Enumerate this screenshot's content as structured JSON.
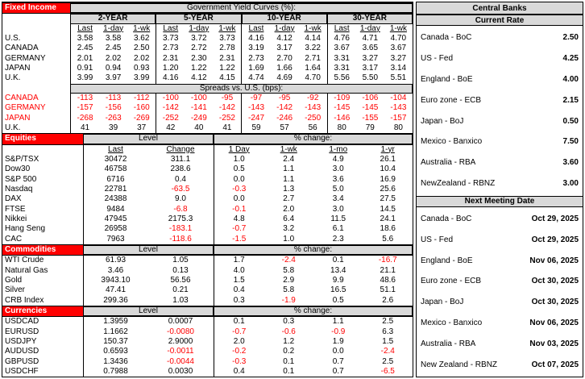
{
  "colors": {
    "section_header_bg": "#FF0000",
    "section_header_text": "#FFFFFF",
    "table_header_bg": "#D9D9D9",
    "negative_text": "#FF0000"
  },
  "fixed_income": {
    "section_label": "Fixed Income",
    "title": "Government Yield Curves (%):",
    "maturities": [
      "2-YEAR",
      "5-YEAR",
      "10-YEAR",
      "30-YEAR"
    ],
    "subheaders": [
      "Last",
      "1-day",
      "1-wk"
    ],
    "yield_rows": [
      {
        "label": "U.S.",
        "values": [
          "3.58",
          "3.58",
          "3.62",
          "3.73",
          "3.72",
          "3.73",
          "4.16",
          "4.12",
          "4.14",
          "4.76",
          "4.71",
          "4.70"
        ]
      },
      {
        "label": "CANADA",
        "values": [
          "2.45",
          "2.45",
          "2.50",
          "2.73",
          "2.72",
          "2.78",
          "3.19",
          "3.17",
          "3.22",
          "3.67",
          "3.65",
          "3.67"
        ]
      },
      {
        "label": "GERMANY",
        "values": [
          "2.01",
          "2.02",
          "2.02",
          "2.31",
          "2.30",
          "2.31",
          "2.73",
          "2.70",
          "2.71",
          "3.31",
          "3.27",
          "3.27"
        ]
      },
      {
        "label": "JAPAN",
        "values": [
          "0.91",
          "0.94",
          "0.93",
          "1.20",
          "1.22",
          "1.22",
          "1.69",
          "1.66",
          "1.64",
          "3.31",
          "3.17",
          "3.14"
        ]
      },
      {
        "label": "U.K.",
        "values": [
          "3.99",
          "3.97",
          "3.99",
          "4.16",
          "4.12",
          "4.15",
          "4.74",
          "4.69",
          "4.70",
          "5.56",
          "5.50",
          "5.51"
        ]
      }
    ],
    "spreads_title": "Spreads vs. U.S. (bps):",
    "spread_rows": [
      {
        "label": "CANADA",
        "values": [
          "-113",
          "-113",
          "-112",
          "-100",
          "-100",
          "-95",
          "-97",
          "-95",
          "-92",
          "-109",
          "-106",
          "-104"
        ]
      },
      {
        "label": "GERMANY",
        "values": [
          "-157",
          "-156",
          "-160",
          "-142",
          "-141",
          "-142",
          "-143",
          "-142",
          "-143",
          "-145",
          "-145",
          "-143"
        ]
      },
      {
        "label": "JAPAN",
        "values": [
          "-268",
          "-263",
          "-269",
          "-252",
          "-249",
          "-252",
          "-247",
          "-246",
          "-250",
          "-146",
          "-155",
          "-157"
        ]
      },
      {
        "label": "U.K.",
        "values": [
          "41",
          "39",
          "37",
          "42",
          "40",
          "41",
          "59",
          "57",
          "56",
          "80",
          "79",
          "80"
        ]
      }
    ]
  },
  "equities": {
    "section_label": "Equities",
    "level_label": "Level",
    "pct_label": "% change:",
    "col_headers": [
      "Last",
      "Change",
      "1 Day",
      "1-wk",
      "1-mo",
      "1-yr"
    ],
    "rows": [
      {
        "label": "S&P/TSX",
        "values": [
          "30472",
          "311.1",
          "1.0",
          "2.4",
          "4.9",
          "26.1"
        ]
      },
      {
        "label": "Dow30",
        "values": [
          "46758",
          "238.6",
          "0.5",
          "1.1",
          "3.0",
          "10.4"
        ]
      },
      {
        "label": "S&P 500",
        "values": [
          "6716",
          "0.4",
          "0.0",
          "1.1",
          "3.6",
          "16.9"
        ]
      },
      {
        "label": "Nasdaq",
        "values": [
          "22781",
          "-63.5",
          "-0.3",
          "1.3",
          "5.0",
          "25.6"
        ]
      },
      {
        "label": "DAX",
        "values": [
          "24388",
          "9.0",
          "0.0",
          "2.7",
          "3.4",
          "27.5"
        ]
      },
      {
        "label": "FTSE",
        "values": [
          "9484",
          "-6.8",
          "-0.1",
          "2.0",
          "3.0",
          "14.5"
        ]
      },
      {
        "label": "Nikkei",
        "values": [
          "47945",
          "2175.3",
          "4.8",
          "6.4",
          "11.5",
          "24.1"
        ]
      },
      {
        "label": "Hang Seng",
        "values": [
          "26958",
          "-183.1",
          "-0.7",
          "3.2",
          "6.1",
          "18.6"
        ]
      },
      {
        "label": "CAC",
        "values": [
          "7963",
          "-118.6",
          "-1.5",
          "1.0",
          "2.3",
          "5.6"
        ]
      }
    ]
  },
  "commodities": {
    "section_label": "Commodities",
    "level_label": "Level",
    "pct_label": "% change:",
    "rows": [
      {
        "label": "WTI Crude",
        "values": [
          "61.93",
          "1.05",
          "1.7",
          "-2.4",
          "0.1",
          "-16.7"
        ]
      },
      {
        "label": "Natural Gas",
        "values": [
          "3.46",
          "0.13",
          "4.0",
          "5.8",
          "13.4",
          "21.1"
        ]
      },
      {
        "label": "Gold",
        "values": [
          "3943.10",
          "56.56",
          "1.5",
          "2.9",
          "9.9",
          "48.6"
        ]
      },
      {
        "label": "Silver",
        "values": [
          "47.41",
          "0.21",
          "0.4",
          "5.8",
          "16.5",
          "51.1"
        ]
      },
      {
        "label": "CRB Index",
        "values": [
          "299.36",
          "1.03",
          "0.3",
          "-1.9",
          "0.5",
          "2.6"
        ]
      }
    ]
  },
  "currencies": {
    "section_label": "Currencies",
    "level_label": "Level",
    "pct_label": "% change:",
    "rows": [
      {
        "label": "USDCAD",
        "values": [
          "1.3959",
          "0.0007",
          "0.1",
          "0.3",
          "1.1",
          "2.5"
        ]
      },
      {
        "label": "EURUSD",
        "values": [
          "1.1662",
          "-0.0080",
          "-0.7",
          "-0.6",
          "-0.9",
          "6.3"
        ]
      },
      {
        "label": "USDJPY",
        "values": [
          "150.37",
          "2.9000",
          "2.0",
          "1.2",
          "1.9",
          "1.5"
        ]
      },
      {
        "label": "AUDUSD",
        "values": [
          "0.6593",
          "-0.0011",
          "-0.2",
          "0.2",
          "0.0",
          "-2.4"
        ]
      },
      {
        "label": "GBPUSD",
        "values": [
          "1.3436",
          "-0.0044",
          "-0.3",
          "0.1",
          "0.7",
          "2.5"
        ]
      },
      {
        "label": "USDCHF",
        "values": [
          "0.7988",
          "0.0030",
          "0.4",
          "0.1",
          "0.7",
          "-6.5"
        ]
      }
    ]
  },
  "central_banks": {
    "title": "Central Banks",
    "current_rate_label": "Current Rate",
    "rates": [
      {
        "name": "Canada - BoC",
        "value": "2.50"
      },
      {
        "name": "US - Fed",
        "value": "4.25"
      },
      {
        "name": "England - BoE",
        "value": "4.00"
      },
      {
        "name": "Euro zone - ECB",
        "value": "2.15"
      },
      {
        "name": "Japan - BoJ",
        "value": "0.50"
      },
      {
        "name": "Mexico - Banxico",
        "value": "7.50"
      },
      {
        "name": "Australia - RBA",
        "value": "3.60"
      },
      {
        "name": "NewZealand - RBNZ",
        "value": "3.00"
      }
    ],
    "next_meeting_label": "Next Meeting Date",
    "meetings": [
      {
        "name": "Canada - BoC",
        "date": "Oct 29, 2025"
      },
      {
        "name": "US - Fed",
        "date": "Oct 29, 2025"
      },
      {
        "name": "England - BoE",
        "date": "Nov 06, 2025"
      },
      {
        "name": "Euro zone - ECB",
        "date": "Oct 30, 2025"
      },
      {
        "name": "Japan - BoJ",
        "date": "Oct 30, 2025"
      },
      {
        "name": "Mexico - Banxico",
        "date": "Nov 06, 2025"
      },
      {
        "name": "Australia - RBA",
        "date": "Nov 03, 2025"
      },
      {
        "name": "New Zealand - RBNZ",
        "date": "Oct 07, 2025"
      }
    ]
  }
}
